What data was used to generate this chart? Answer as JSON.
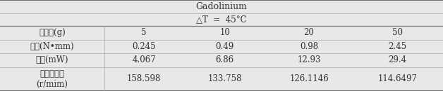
{
  "title": "Gadolinium",
  "subtitle": "△T  =  45°C",
  "row_labels": [
    "웨질량(g)",
    "토크(N•mm)",
    "출력(mW)",
    "분당회전수\n(r/mim)"
  ],
  "col_values": [
    "5",
    "10",
    "20",
    "50"
  ],
  "table_data": [
    [
      "5",
      "10",
      "20",
      "50"
    ],
    [
      "0.245",
      "0.49",
      "0.98",
      "2.45"
    ],
    [
      "4.067",
      "6.86",
      "12.93",
      "29.4"
    ],
    [
      "158.598",
      "133.758",
      "126.1146",
      "114.6497"
    ]
  ],
  "bg_color": "#e8e8e8",
  "font_size": 8.5,
  "title_font_size": 9
}
